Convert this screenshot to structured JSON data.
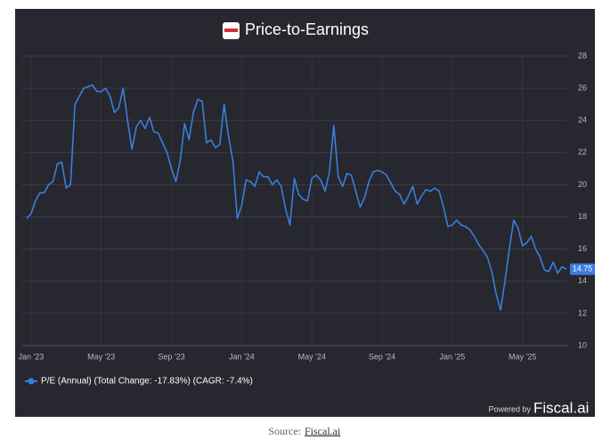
{
  "chart_data": {
    "type": "line",
    "title": "Price-to-Earnings",
    "x": [
      -0.25,
      0,
      0.25,
      0.5,
      0.75,
      1,
      1.25,
      1.5,
      1.75,
      2,
      2.25,
      2.5,
      2.75,
      3,
      3.25,
      3.5,
      3.75,
      4,
      4.25,
      4.5,
      4.75,
      5,
      5.25,
      5.5,
      5.75,
      6,
      6.25,
      6.5,
      6.75,
      7,
      7.25,
      7.5,
      7.75,
      8,
      8.25,
      8.5,
      8.75,
      9,
      9.25,
      9.5,
      9.75,
      10,
      10.25,
      10.5,
      10.75,
      11,
      11.25,
      11.5,
      11.75,
      12,
      12.25,
      12.5,
      12.75,
      13,
      13.25,
      13.5,
      13.75,
      14,
      14.25,
      14.5,
      14.75,
      15,
      15.25,
      15.5,
      15.75,
      16,
      16.25,
      16.5,
      16.75,
      17,
      17.25,
      17.5,
      17.75,
      18,
      18.25,
      18.5,
      18.75,
      19,
      19.25,
      19.5,
      19.75,
      20,
      20.25,
      20.5,
      20.75,
      21,
      21.25,
      21.5,
      21.75,
      22,
      22.25,
      22.5,
      22.75,
      23,
      23.25,
      23.5,
      23.75,
      24,
      24.25,
      24.5,
      24.75,
      25,
      25.25,
      25.5,
      25.75,
      26,
      26.25,
      26.5,
      26.75,
      27,
      27.25,
      27.5,
      27.75,
      28,
      28.25,
      28.5,
      28.75,
      29,
      29.25,
      29.5,
      29.75,
      30,
      30.25,
      30.5
    ],
    "series": [
      {
        "name": "P/E (Annual) (Total Change: -17.83%) (CAGR: -7.4%)",
        "color": "#3b7ddd",
        "values": [
          17.9,
          18.2,
          19,
          19.5,
          19.5,
          20,
          20.2,
          21.3,
          21.4,
          19.8,
          20,
          25,
          25.5,
          26,
          26.1,
          26.2,
          25.8,
          25.8,
          26,
          25.5,
          24.5,
          24.8,
          26,
          24,
          22.2,
          23.6,
          24,
          23.5,
          24.2,
          23.3,
          23.2,
          22.6,
          22,
          21,
          20.2,
          21.5,
          23.8,
          22.8,
          24.5,
          25.3,
          25.2,
          22.6,
          22.8,
          22.3,
          22.5,
          25,
          23,
          21.5,
          17.9,
          18.7,
          20.3,
          20.2,
          19.9,
          20.8,
          20.5,
          20.5,
          20,
          20.3,
          19.9,
          18.5,
          17.5,
          20.4,
          19.4,
          19.1,
          19,
          20.4,
          20.6,
          20.3,
          19.6,
          20.8,
          23.7,
          20.5,
          19.9,
          20.7,
          20.6,
          19.6,
          18.6,
          19.2,
          20.2,
          20.8,
          20.9,
          20.8,
          20.6,
          20.1,
          19.6,
          19.4,
          18.8,
          19.3,
          19.9,
          18.8,
          19.3,
          19.7,
          19.6,
          19.8,
          19.6,
          18.6,
          17.4,
          17.5,
          17.8,
          17.5,
          17.4,
          17.2,
          16.8,
          16.3,
          15.9,
          15.5,
          14.6,
          13.2,
          12.2,
          14,
          16,
          17.8,
          17.3,
          16.2,
          16.4,
          16.8,
          16,
          15.5,
          14.7,
          14.6,
          15.2,
          14.5,
          14.9,
          14.75
        ]
      }
    ],
    "xlim": [
      -0.5,
      30.55
    ],
    "xticks": [
      {
        "value": 0,
        "label": "Jan '23"
      },
      {
        "value": 4,
        "label": "May '23"
      },
      {
        "value": 8,
        "label": "Sep '23"
      },
      {
        "value": 12,
        "label": "Jan '24"
      },
      {
        "value": 16,
        "label": "May '24"
      },
      {
        "value": 20,
        "label": "Sep '24"
      },
      {
        "value": 24,
        "label": "Jan '25"
      },
      {
        "value": 28,
        "label": "May '25"
      }
    ],
    "ylim": [
      10,
      28
    ],
    "yticks": [
      10,
      12,
      14,
      16,
      18,
      20,
      22,
      24,
      26,
      28
    ],
    "grid": true,
    "branding": {
      "prefix": "Powered by",
      "name": "Fiscal.ai"
    },
    "source": {
      "label": "Source:",
      "name": "Fiscal.ai"
    }
  }
}
